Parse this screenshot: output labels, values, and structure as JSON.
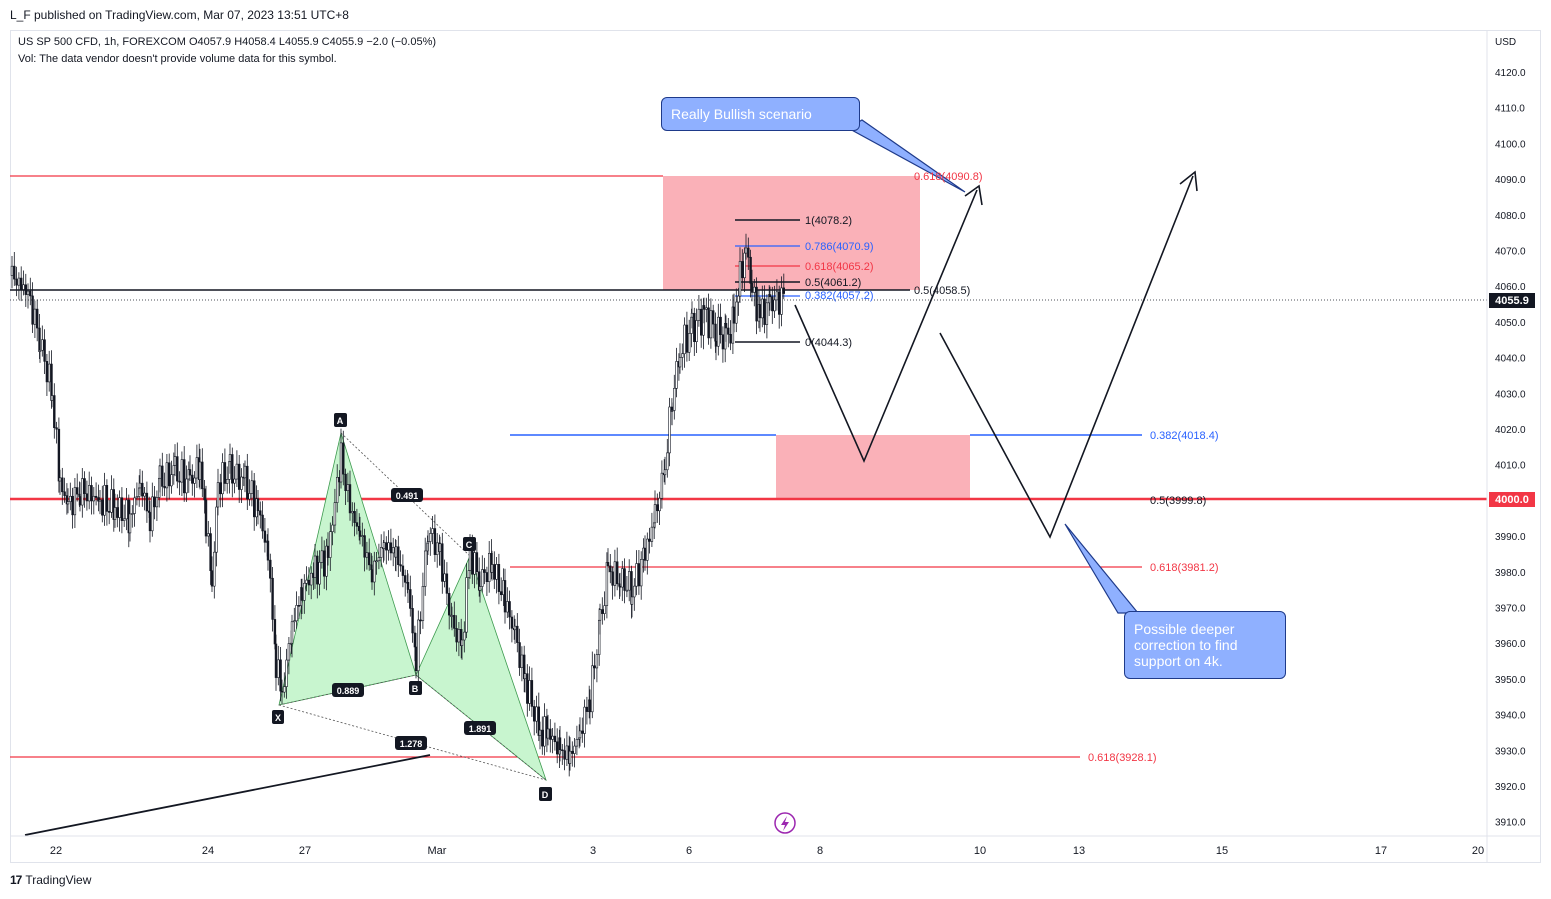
{
  "header": {
    "publisher": "L_F published on TradingView.com, Mar 07, 2023 13:51 UTC+8",
    "symbol_line": "US SP 500 CFD, 1h, FOREXCOM  O4057.9  H4058.4  L4055.9  C4055.9  −2.0 (−0.05%)",
    "vol_line": "Vol: The data vendor doesn't provide volume data for this symbol."
  },
  "footer": {
    "logo": "17",
    "brand": "TradingView"
  },
  "colors": {
    "red": "#f23645",
    "blue": "#2962ff",
    "zone": "#f9a3ab",
    "harmonic": "#c8f5cf",
    "callout": "#8fb0ff"
  },
  "annotations": {
    "bullish_callout": "Really Bullish scenario",
    "deeper_callout": "Possible deeper correction to find support on 4k."
  },
  "chart_data": {
    "type": "candlestick",
    "currency": "USD",
    "y_ticks": [
      "4120.0",
      "4110.0",
      "4100.0",
      "4090.0",
      "4080.0",
      "4070.0",
      "4060.0",
      "4050.0",
      "4040.0",
      "4030.0",
      "4020.0",
      "4010.0",
      "4000.0",
      "3990.0",
      "3980.0",
      "3970.0",
      "3960.0",
      "3950.0",
      "3940.0",
      "3930.0",
      "3920.0",
      "3910.0"
    ],
    "x_ticks": [
      "22",
      "24",
      "27",
      "Mar",
      "3",
      "6",
      "8",
      "10",
      "13",
      "15",
      "17",
      "20"
    ],
    "last_price": "4055.9",
    "level_4000": "4000.0",
    "fib_levels": [
      {
        "label": "1(4078.2)",
        "color": "#131722"
      },
      {
        "label": "0.786(4070.9)",
        "color": "#2962ff"
      },
      {
        "label": "0.618(4065.2)",
        "color": "#f23645"
      },
      {
        "label": "0.5(4061.2)",
        "color": "#131722"
      },
      {
        "label": "0.382(4057.2)",
        "color": "#2962ff"
      },
      {
        "label": "0(4044.3)",
        "color": "#131722"
      }
    ],
    "ext_levels": [
      {
        "label": "0.618(4090.8)",
        "color": "#f23645"
      },
      {
        "label": "0.5(4058.5)",
        "color": "#131722"
      },
      {
        "label": "0.382(4018.4)",
        "color": "#2962ff"
      },
      {
        "label": "0.5(3999.8)",
        "color": "#131722"
      },
      {
        "label": "0.618(3981.2)",
        "color": "#f23645"
      },
      {
        "label": "0.618(3928.1)",
        "color": "#f23645"
      }
    ],
    "harmonic_points": [
      "X",
      "A",
      "B",
      "C",
      "D"
    ],
    "harmonic_ratios": [
      "0.491",
      "0.889",
      "1.891",
      "1.278"
    ]
  }
}
